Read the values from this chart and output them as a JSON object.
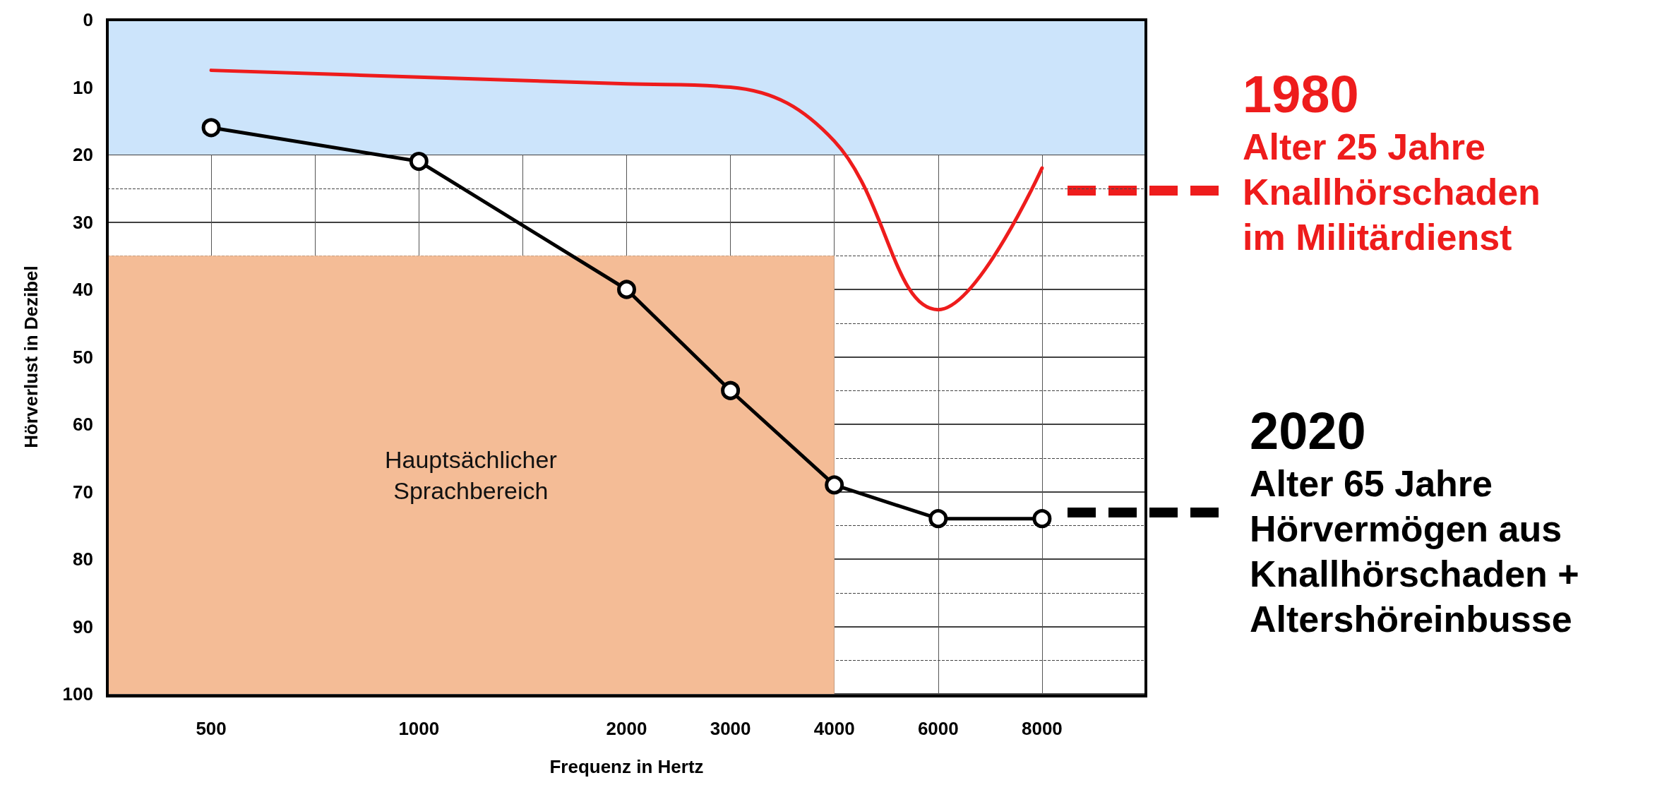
{
  "chart_data": {
    "type": "line",
    "xlabel": "Frequenz in Hertz",
    "ylabel": "Hörverlust in Dezibel",
    "categories": [
      null,
      "500",
      null,
      "1000",
      null,
      "2000",
      "3000",
      "4000",
      "6000",
      "8000",
      null
    ],
    "series": [
      {
        "name": "1980\nAlter 25 Jahre\nKnallhörschaden\nim Militärdienst",
        "color": "#ee1c1c",
        "values": [
          null,
          7.5,
          null,
          8.5,
          null,
          9.5,
          10,
          18,
          43,
          22,
          null
        ],
        "marker": "none"
      },
      {
        "name": "2020\nAlter 65 Jahre\nHörvermögen aus\nKnallhörschaden +\nAltershöreinbusse",
        "color": "#000000",
        "values": [
          null,
          16,
          null,
          21,
          null,
          40,
          55,
          69,
          74,
          74,
          null
        ],
        "marker": "circle"
      }
    ],
    "ylim": [
      100,
      0
    ],
    "yticks": [
      0,
      10,
      20,
      30,
      40,
      50,
      60,
      70,
      80,
      90,
      100
    ],
    "grid": true,
    "legend": "right",
    "line_style": "solid",
    "bands": [
      {
        "axis": "y",
        "from": 0,
        "to": 20,
        "color": "#cce4fb"
      },
      {
        "axis": "y",
        "from": 35,
        "to": 100,
        "label": "Hauptsächlicher\nSprachbereich",
        "color": "#f4bc96"
      }
    ]
  }
}
